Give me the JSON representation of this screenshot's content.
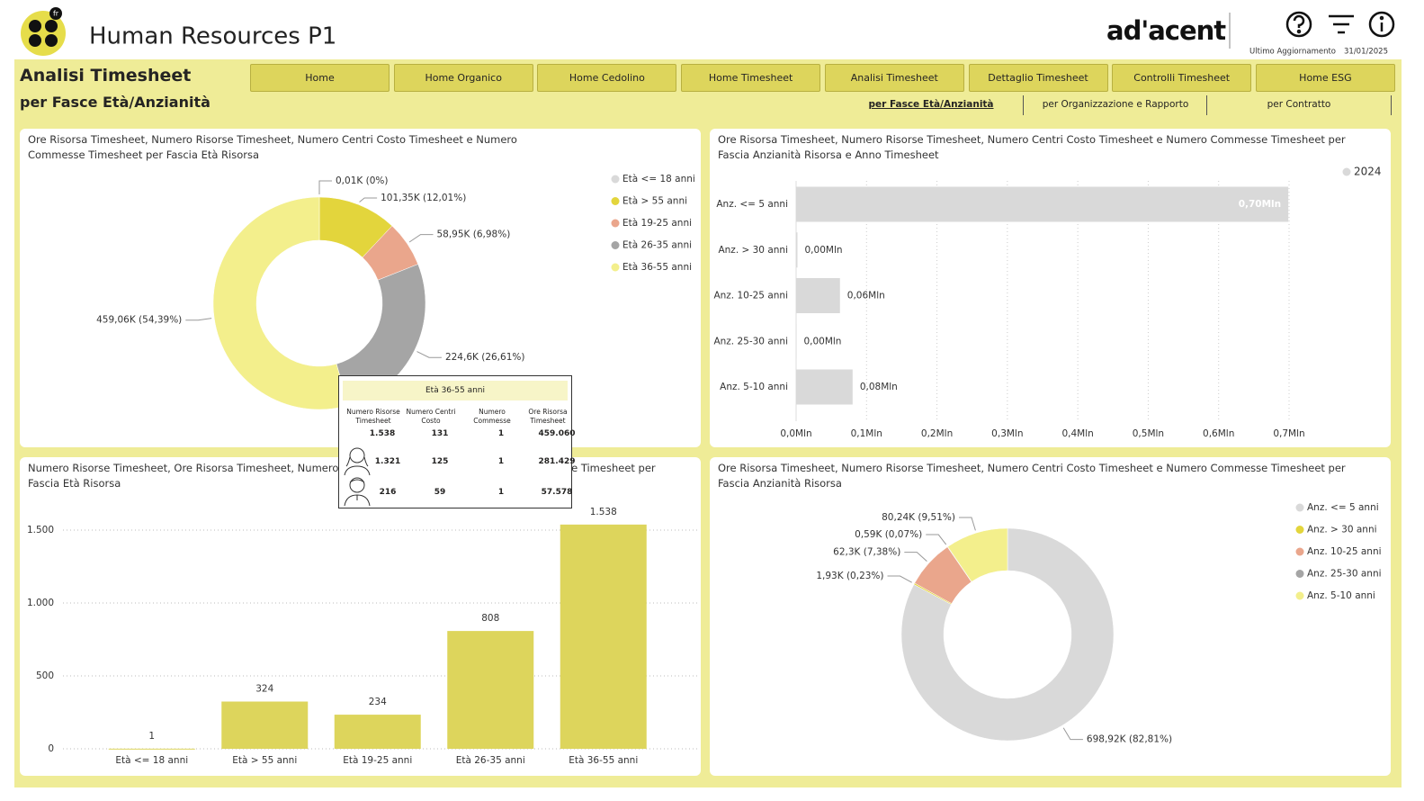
{
  "header": {
    "logo_badge": "fr",
    "title": "Human Resources P1",
    "brand": "ad'acent",
    "last_update": {
      "label": "Ultimo Aggiornamento",
      "date": "31/01/2025"
    }
  },
  "page": {
    "title": "Analisi Timesheet",
    "subtitle": "per Fasce Età/Anzianità"
  },
  "nav": [
    "Home",
    "Home Organico",
    "Home Cedolino",
    "Home Timesheet",
    "Analisi Timesheet",
    "Dettaglio Timesheet",
    "Controlli Timesheet",
    "Home ESG"
  ],
  "tabs": [
    "per Fasce Età/Anzianità",
    "per Organizzazione e Rapporto",
    "per Contratto"
  ],
  "chart_data": [
    {
      "type": "donut",
      "title": "Ore Risorsa Timesheet, Numero Risorse Timesheet, Numero Centri Costo Timesheet e Numero Commesse Timesheet per Fascia Età Risorsa",
      "categories": [
        "Età <= 18 anni",
        "Età > 55 anni",
        "Età 19-25 anni",
        "Età 26-35 anni",
        "Età 36-55 anni"
      ],
      "values": [
        0.01,
        101.35,
        58.95,
        224.6,
        459.06
      ],
      "value_labels": [
        "0,01K (0%)",
        "101,35K (12,01%)",
        "58,95K (6,98%)",
        "224,6K (26,61%)",
        "459,06K (54,39%)"
      ],
      "colors": [
        "#d9d9d9",
        "#e3d53c",
        "#eaa68c",
        "#a5a5a5",
        "#f3ef8c"
      ]
    },
    {
      "type": "bar",
      "horizontal": true,
      "title": "Ore Risorsa Timesheet, Numero Risorse Timesheet, Numero Centri Costo Timesheet e Numero Commesse Timesheet per Fascia Anzianità Risorsa e Anno Timesheet",
      "categories": [
        "Anz. <= 5 anni",
        "Anz. > 30 anni",
        "Anz. 10-25 anni",
        "Anz. 25-30 anni",
        "Anz. 5-10 anni"
      ],
      "series": [
        {
          "name": "2024",
          "color": "#d9d9d9",
          "values": [
            0.69892,
            0.00193,
            0.0623,
            0.00059,
            0.08024
          ],
          "value_labels": [
            "0,70Mln",
            "0,00Mln",
            "0,06Mln",
            "0,00Mln",
            "0,08Mln"
          ]
        }
      ],
      "xlim": [
        0,
        0.7
      ],
      "xticks": [
        {
          "value": 0,
          "label": "0,0Mln"
        },
        {
          "value": 0.1,
          "label": "0,1Mln"
        },
        {
          "value": 0.2,
          "label": "0,2Mln"
        },
        {
          "value": 0.3,
          "label": "0,3Mln"
        },
        {
          "value": 0.4,
          "label": "0,4Mln"
        },
        {
          "value": 0.5,
          "label": "0,5Mln"
        },
        {
          "value": 0.6,
          "label": "0,6Mln"
        },
        {
          "value": 0.7,
          "label": "0,7Mln"
        }
      ],
      "grid": true,
      "legend": "top-right"
    },
    {
      "type": "bar",
      "title": "Numero Risorse Timesheet, Ore Risorsa Timesheet, Numero Centri Costo Timesheet e Numero Commesse Timesheet per Fascia Età Risorsa",
      "categories": [
        "Età <= 18 anni",
        "Età > 55 anni",
        "Età 19-25 anni",
        "Età 26-35 anni",
        "Età 36-55 anni"
      ],
      "values": [
        1,
        324,
        234,
        808,
        1538
      ],
      "value_labels": [
        "1",
        "324",
        "234",
        "808",
        "1.538"
      ],
      "color": "#ddd55c",
      "ylim": [
        0,
        1700
      ],
      "yticks": [
        0,
        500,
        {
          "value": 1000,
          "label": "1.000"
        },
        {
          "value": 1500,
          "label": "1.500"
        }
      ],
      "grid": true
    },
    {
      "type": "donut",
      "title": "Ore Risorsa Timesheet, Numero Risorse Timesheet, Numero Centri Costo Timesheet e Numero Commesse Timesheet per Fascia Anzianità Risorsa",
      "categories": [
        "Anz. <= 5 anni",
        "Anz. > 30 anni",
        "Anz. 10-25 anni",
        "Anz. 25-30 anni",
        "Anz. 5-10 anni"
      ],
      "values": [
        698.92,
        1.93,
        62.3,
        0.59,
        80.24
      ],
      "value_labels": [
        "698,92K (82,81%)",
        "1,93K (0,23%)",
        "62,3K (7,38%)",
        "0,59K (0,07%)",
        "80,24K (9,51%)"
      ],
      "colors": [
        "#d9d9d9",
        "#e3d53c",
        "#eaa68c",
        "#a5a5a5",
        "#f3ef8c"
      ]
    }
  ],
  "tooltip": {
    "title": "Età 36-55 anni",
    "headers": [
      "Numero Risorse Timesheet",
      "Numero Centri Costo",
      "Numero Commesse",
      "Ore Risorsa Timesheet"
    ],
    "rows": [
      [
        "1.538",
        "131",
        "1",
        "459.060"
      ],
      [
        "1.321",
        "125",
        "1",
        "281.429"
      ],
      [
        "216",
        "59",
        "1",
        "57.578"
      ]
    ]
  }
}
